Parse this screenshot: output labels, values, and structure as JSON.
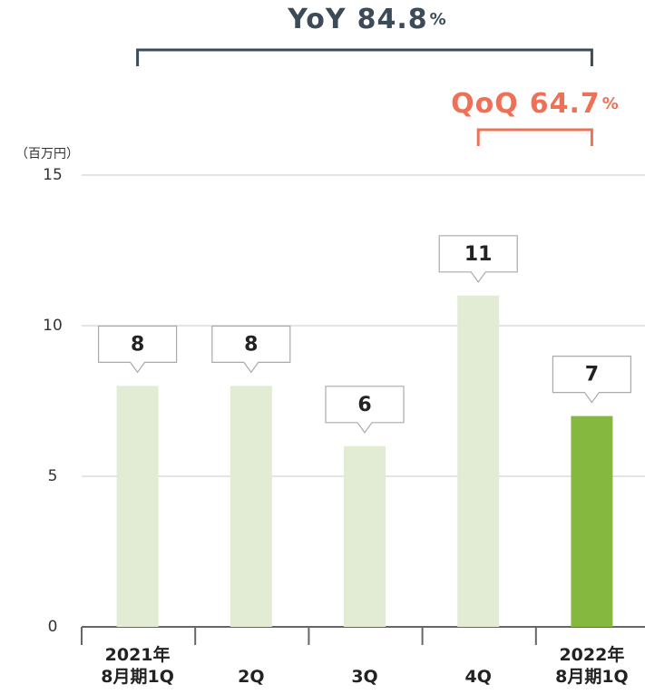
{
  "chart_data": {
    "type": "bar",
    "y_axis_label": "（百万円）",
    "categories": [
      "2021年\n8月期1Q",
      "2Q",
      "3Q",
      "4Q",
      "2022年\n8月期1Q"
    ],
    "values": [
      8,
      8,
      6,
      11,
      7
    ],
    "colors": [
      "#e2ebd3",
      "#e2ebd3",
      "#e2ebd3",
      "#e2ebd3",
      "#84b83f"
    ],
    "ylim": [
      0,
      15
    ],
    "yticks": [
      0,
      5,
      10,
      15
    ],
    "grid": true,
    "annotations": [
      {
        "label": "YoY",
        "value": 84.8,
        "unit": "%",
        "color": "#3d4a58"
      },
      {
        "label": "QoQ",
        "value": 64.7,
        "unit": "%",
        "color": "#ee7157"
      }
    ]
  }
}
